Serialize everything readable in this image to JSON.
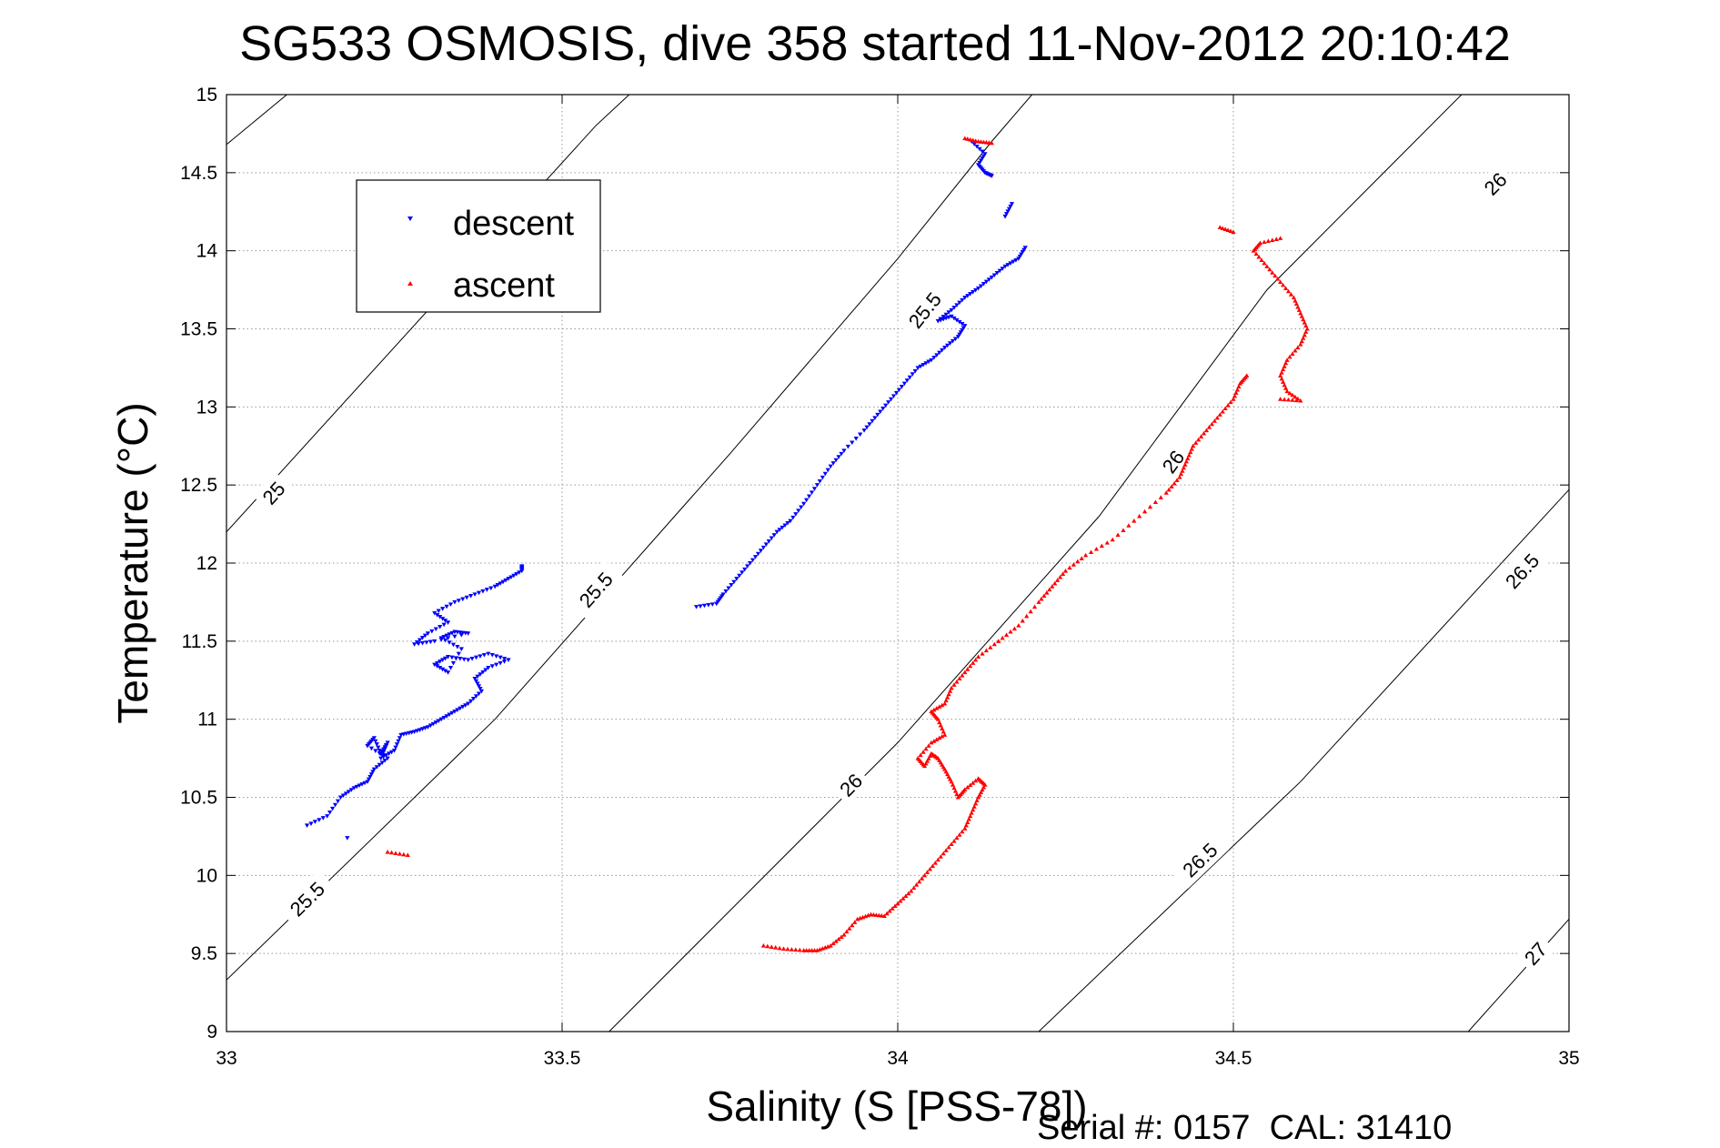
{
  "chart_data": {
    "type": "scatter",
    "title": "SG533 OSMOSIS, dive 358 started 11-Nov-2012 20:10:42",
    "xlabel": "Salinity (S [PSS-78])",
    "ylabel": "Temperature (°C)",
    "xlim": [
      33,
      35
    ],
    "ylim": [
      9,
      15
    ],
    "xticks": [
      33,
      33.5,
      34,
      34.5,
      35
    ],
    "xtick_labels": [
      "33",
      "33.5",
      "34",
      "34.5",
      "35"
    ],
    "yticks": [
      9,
      9.5,
      10,
      10.5,
      11,
      11.5,
      12,
      12.5,
      13,
      13.5,
      14,
      14.5,
      15
    ],
    "ytick_labels": [
      "9",
      "9.5",
      "10",
      "10.5",
      "11",
      "11.5",
      "12",
      "12.5",
      "13",
      "13.5",
      "14",
      "14.5",
      "15"
    ],
    "grid": true,
    "legend": {
      "placement": "top-left",
      "entries": [
        "descent",
        "ascent"
      ]
    },
    "footer": "Serial #: 0157  CAL: 31410",
    "colors": {
      "descent": "#0000ff",
      "ascent": "#ff0000",
      "contour": "#000000"
    },
    "density_contours": [
      {
        "sigma": 25.0,
        "label": "25",
        "points": [
          [
            33,
            14.68
          ],
          [
            33.09,
            15.0
          ]
        ],
        "label_points": []
      },
      {
        "sigma": 25.0,
        "label": "25",
        "points": [
          [
            33,
            12.2
          ],
          [
            33.55,
            14.8
          ],
          [
            33.6,
            15.0
          ]
        ],
        "label_points": [
          [
            33.07,
            12.45
          ]
        ]
      },
      {
        "sigma": 25.5,
        "label": "25.5",
        "points": [
          [
            33,
            9.33
          ],
          [
            33.4,
            11.0
          ],
          [
            33.75,
            12.7
          ],
          [
            34.0,
            13.95
          ],
          [
            34.14,
            14.7
          ],
          [
            34.2,
            15.0
          ]
        ],
        "label_points": [
          [
            33.12,
            9.85
          ],
          [
            33.55,
            11.83
          ],
          [
            34.04,
            13.62
          ]
        ]
      },
      {
        "sigma": 26.0,
        "label": "26",
        "points": [
          [
            33.57,
            9.0
          ],
          [
            34.0,
            10.85
          ],
          [
            34.3,
            12.3
          ],
          [
            34.55,
            13.75
          ],
          [
            34.84,
            15.0
          ]
        ],
        "label_points": [
          [
            33.93,
            10.58
          ],
          [
            34.41,
            12.65
          ],
          [
            34.89,
            14.43
          ]
        ]
      },
      {
        "sigma": 26.5,
        "label": "26.5",
        "points": [
          [
            34.21,
            9.0
          ],
          [
            34.6,
            10.6
          ],
          [
            35.0,
            12.47
          ]
        ],
        "label_points": [
          [
            34.45,
            10.1
          ],
          [
            34.93,
            11.95
          ]
        ]
      },
      {
        "sigma": 27.0,
        "label": "27",
        "points": [
          [
            34.85,
            9.0
          ],
          [
            35.0,
            9.72
          ]
        ],
        "label_points": [
          [
            34.95,
            9.5
          ]
        ]
      }
    ],
    "series": [
      {
        "name": "descent",
        "marker": "triangle-down",
        "segments": [
          [
            [
              33.12,
              10.32
            ],
            [
              33.15,
              10.38
            ],
            [
              33.17,
              10.5
            ],
            [
              33.19,
              10.56
            ],
            [
              33.21,
              10.6
            ],
            [
              33.22,
              10.68
            ],
            [
              33.24,
              10.75
            ],
            [
              33.21,
              10.83
            ],
            [
              33.22,
              10.88
            ],
            [
              33.23,
              10.78
            ],
            [
              33.24,
              10.85
            ],
            [
              33.23,
              10.75
            ],
            [
              33.25,
              10.8
            ],
            [
              33.26,
              10.9
            ],
            [
              33.28,
              10.92
            ],
            [
              33.3,
              10.95
            ],
            [
              33.32,
              11.0
            ],
            [
              33.34,
              11.05
            ],
            [
              33.36,
              11.1
            ],
            [
              33.38,
              11.18
            ],
            [
              33.37,
              11.26
            ],
            [
              33.39,
              11.33
            ],
            [
              33.42,
              11.38
            ],
            [
              33.39,
              11.42
            ],
            [
              33.36,
              11.38
            ],
            [
              33.33,
              11.4
            ],
            [
              33.31,
              11.35
            ],
            [
              33.33,
              11.3
            ],
            [
              33.35,
              11.45
            ],
            [
              33.32,
              11.52
            ],
            [
              33.34,
              11.56
            ],
            [
              33.36,
              11.55
            ],
            [
              33.31,
              11.5
            ],
            [
              33.28,
              11.48
            ],
            [
              33.3,
              11.55
            ],
            [
              33.33,
              11.62
            ],
            [
              33.31,
              11.68
            ],
            [
              33.34,
              11.75
            ],
            [
              33.37,
              11.8
            ],
            [
              33.4,
              11.85
            ],
            [
              33.42,
              11.9
            ],
            [
              33.44,
              11.95
            ],
            [
              33.44,
              11.98
            ]
          ],
          [
            [
              33.18,
              10.24
            ]
          ],
          [
            [
              33.7,
              11.72
            ],
            [
              33.73,
              11.74
            ],
            [
              33.74,
              11.8
            ],
            [
              33.76,
              11.9
            ],
            [
              33.78,
              12.0
            ],
            [
              33.8,
              12.1
            ],
            [
              33.82,
              12.2
            ],
            [
              33.84,
              12.27
            ],
            [
              33.86,
              12.38
            ],
            [
              33.88,
              12.5
            ],
            [
              33.9,
              12.62
            ],
            [
              33.92,
              12.72
            ],
            [
              33.95,
              12.85
            ],
            [
              33.97,
              12.95
            ],
            [
              33.99,
              13.05
            ],
            [
              34.01,
              13.15
            ],
            [
              34.03,
              13.25
            ],
            [
              34.05,
              13.3
            ],
            [
              34.07,
              13.38
            ],
            [
              34.09,
              13.45
            ],
            [
              34.1,
              13.52
            ],
            [
              34.08,
              13.58
            ],
            [
              34.06,
              13.55
            ],
            [
              34.08,
              13.62
            ],
            [
              34.1,
              13.7
            ],
            [
              34.12,
              13.76
            ],
            [
              34.14,
              13.83
            ],
            [
              34.16,
              13.9
            ],
            [
              34.18,
              13.95
            ],
            [
              34.19,
              14.02
            ]
          ],
          [
            [
              34.17,
              14.3
            ],
            [
              34.16,
              14.22
            ]
          ],
          [
            [
              34.11,
              14.7
            ],
            [
              34.13,
              14.62
            ],
            [
              34.12,
              14.55
            ],
            [
              34.13,
              14.5
            ],
            [
              34.14,
              14.48
            ]
          ]
        ]
      },
      {
        "name": "ascent",
        "marker": "triangle-up",
        "segments": [
          [
            [
              33.24,
              10.15
            ],
            [
              33.27,
              10.13
            ]
          ],
          [
            [
              33.8,
              9.55
            ],
            [
              33.83,
              9.53
            ],
            [
              33.86,
              9.52
            ],
            [
              33.88,
              9.52
            ],
            [
              33.9,
              9.55
            ],
            [
              33.92,
              9.62
            ],
            [
              33.94,
              9.72
            ],
            [
              33.96,
              9.75
            ],
            [
              33.98,
              9.74
            ],
            [
              34.0,
              9.82
            ],
            [
              34.02,
              9.9
            ],
            [
              34.04,
              10.0
            ],
            [
              34.06,
              10.1
            ],
            [
              34.08,
              10.2
            ],
            [
              34.1,
              10.3
            ],
            [
              34.11,
              10.4
            ],
            [
              34.12,
              10.5
            ],
            [
              34.13,
              10.58
            ],
            [
              34.12,
              10.62
            ],
            [
              34.1,
              10.55
            ],
            [
              34.09,
              10.5
            ],
            [
              34.08,
              10.6
            ],
            [
              34.07,
              10.68
            ],
            [
              34.06,
              10.75
            ],
            [
              34.05,
              10.78
            ],
            [
              34.04,
              10.7
            ],
            [
              34.03,
              10.75
            ],
            [
              34.05,
              10.85
            ],
            [
              34.07,
              10.9
            ],
            [
              34.06,
              11.0
            ],
            [
              34.05,
              11.05
            ],
            [
              34.07,
              11.1
            ],
            [
              34.08,
              11.2
            ],
            [
              34.1,
              11.3
            ],
            [
              34.12,
              11.4
            ],
            [
              34.15,
              11.5
            ],
            [
              34.18,
              11.6
            ],
            [
              34.21,
              11.75
            ],
            [
              34.23,
              11.85
            ],
            [
              34.25,
              11.95
            ],
            [
              34.28,
              12.05
            ],
            [
              34.32,
              12.15
            ],
            [
              34.36,
              12.3
            ],
            [
              34.4,
              12.45
            ],
            [
              34.42,
              12.55
            ],
            [
              34.43,
              12.65
            ],
            [
              34.44,
              12.75
            ],
            [
              34.46,
              12.85
            ],
            [
              34.48,
              12.95
            ],
            [
              34.5,
              13.05
            ],
            [
              34.51,
              13.15
            ],
            [
              34.52,
              13.2
            ]
          ],
          [
            [
              34.57,
              13.05
            ],
            [
              34.6,
              13.04
            ],
            [
              34.58,
              13.1
            ],
            [
              34.57,
              13.2
            ],
            [
              34.58,
              13.3
            ],
            [
              34.6,
              13.4
            ],
            [
              34.61,
              13.5
            ],
            [
              34.6,
              13.6
            ],
            [
              34.59,
              13.7
            ],
            [
              34.57,
              13.8
            ],
            [
              34.55,
              13.9
            ],
            [
              34.53,
              14.0
            ],
            [
              34.54,
              14.05
            ],
            [
              34.57,
              14.08
            ]
          ],
          [
            [
              34.48,
              14.15
            ],
            [
              34.5,
              14.12
            ]
          ],
          [
            [
              34.1,
              14.72
            ],
            [
              34.12,
              14.7
            ],
            [
              34.14,
              14.69
            ]
          ]
        ]
      }
    ]
  }
}
